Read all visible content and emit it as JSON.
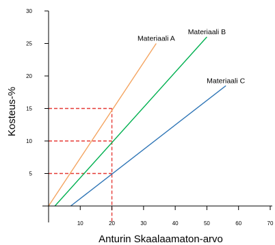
{
  "chart_data": {
    "type": "line",
    "title": "",
    "xlabel": "Anturin Skaalaamaton-arvo",
    "ylabel": "Kosteus-%",
    "xlim": [
      0,
      70
    ],
    "ylim": [
      0,
      30
    ],
    "x_ticks": [
      "10",
      "20",
      "30",
      "40",
      "50",
      "60",
      "70"
    ],
    "y_ticks": [
      "5",
      "10",
      "15",
      "20",
      "25",
      "30"
    ],
    "grid": false,
    "legend": "inline labels at line ends",
    "series": [
      {
        "name": "Materiaali A",
        "color": "#F4A460",
        "x": [
          0,
          34
        ],
        "y": [
          0,
          25
        ]
      },
      {
        "name": "Materiaali B",
        "color": "#00B050",
        "x": [
          2,
          50
        ],
        "y": [
          0,
          26
        ]
      },
      {
        "name": "Materiaali C",
        "color": "#2E75B6",
        "x": [
          7,
          56
        ],
        "y": [
          0,
          18.5
        ]
      }
    ],
    "reference_lines": {
      "color": "#E53935",
      "x": 20,
      "y_values": [
        5,
        10,
        15
      ]
    }
  }
}
